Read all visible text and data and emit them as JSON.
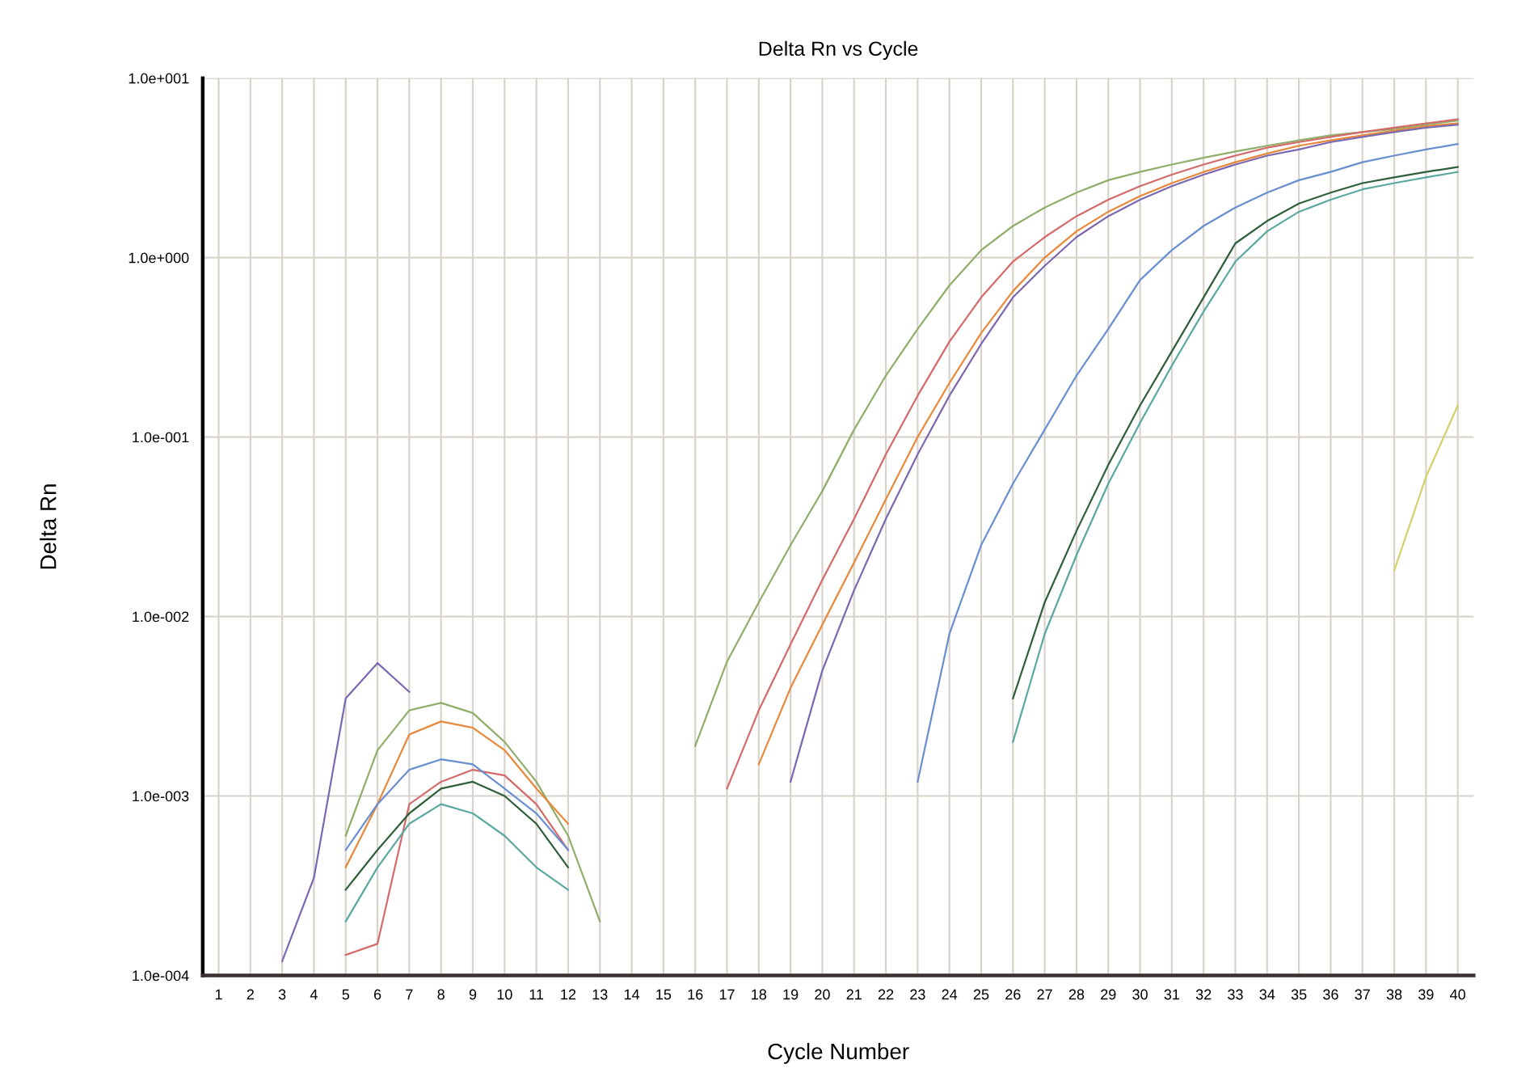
{
  "chart_data": {
    "type": "line",
    "title": "Delta Rn vs Cycle",
    "xlabel": "Cycle Number",
    "ylabel": "Delta Rn",
    "log": "y",
    "x": [
      3,
      4,
      5,
      6,
      7,
      8,
      9,
      10,
      11,
      12,
      13,
      14,
      15,
      16,
      17,
      18,
      19,
      20,
      21,
      22,
      23,
      24,
      25,
      26,
      27,
      28,
      29,
      30,
      31,
      32,
      33,
      34,
      35,
      36,
      37,
      38,
      39,
      40
    ],
    "series": [
      {
        "color": "#8fae6a",
        "values": [
          null,
          null,
          0.0006,
          0.0018,
          0.003,
          0.0033,
          0.0029,
          0.002,
          0.0012,
          0.0006,
          0.0002,
          null,
          null,
          0.0019,
          0.0056,
          0.012,
          0.025,
          0.05,
          0.11,
          0.22,
          0.4,
          0.7,
          1.1,
          1.5,
          1.9,
          2.3,
          2.7,
          3.0,
          3.3,
          3.6,
          3.9,
          4.2,
          4.5,
          4.8,
          5.0,
          5.2,
          5.5,
          5.8
        ]
      },
      {
        "color": "#e8883a",
        "values": [
          null,
          null,
          0.0004,
          0.0009,
          0.0022,
          0.0026,
          0.0024,
          0.0018,
          0.0011,
          0.0007,
          null,
          null,
          null,
          null,
          null,
          0.0015,
          0.004,
          0.009,
          0.02,
          0.045,
          0.1,
          0.2,
          0.38,
          0.65,
          1.0,
          1.4,
          1.8,
          2.2,
          2.6,
          3.0,
          3.4,
          3.8,
          4.2,
          4.5,
          4.8,
          5.1,
          5.4,
          5.6
        ]
      },
      {
        "color": "#7b68b0",
        "values": [
          0.00012,
          0.00035,
          0.0035,
          0.0055,
          0.0038,
          null,
          null,
          null,
          null,
          null,
          null,
          null,
          null,
          null,
          null,
          null,
          0.0012,
          0.005,
          0.014,
          0.035,
          0.08,
          0.17,
          0.33,
          0.6,
          0.9,
          1.3,
          1.7,
          2.1,
          2.5,
          2.9,
          3.3,
          3.7,
          4.0,
          4.4,
          4.7,
          5.0,
          5.3,
          5.5
        ]
      },
      {
        "color": "#d46a6a",
        "values": [
          null,
          null,
          0.00013,
          0.00015,
          0.0009,
          0.0012,
          0.0014,
          0.0013,
          0.0009,
          0.0005,
          null,
          null,
          null,
          null,
          0.0011,
          0.003,
          0.007,
          0.016,
          0.035,
          0.08,
          0.17,
          0.34,
          0.6,
          0.95,
          1.3,
          1.7,
          2.1,
          2.5,
          2.9,
          3.3,
          3.7,
          4.1,
          4.4,
          4.7,
          5.0,
          5.3,
          5.6,
          5.9
        ]
      },
      {
        "color": "#6a8fd0",
        "values": [
          null,
          null,
          0.0005,
          0.0009,
          0.0014,
          0.0016,
          0.0015,
          0.0011,
          0.0008,
          0.0005,
          null,
          null,
          null,
          null,
          null,
          null,
          null,
          null,
          null,
          null,
          0.0012,
          0.008,
          0.025,
          0.055,
          0.11,
          0.22,
          0.4,
          0.75,
          1.1,
          1.5,
          1.9,
          2.3,
          2.7,
          3.0,
          3.4,
          3.7,
          4.0,
          4.3
        ]
      },
      {
        "color": "#2f5f3a",
        "values": [
          null,
          null,
          0.0003,
          0.0005,
          0.0008,
          0.0011,
          0.0012,
          0.001,
          0.0007,
          0.0004,
          null,
          null,
          null,
          null,
          null,
          null,
          null,
          null,
          null,
          null,
          null,
          null,
          null,
          0.0035,
          0.012,
          0.03,
          0.07,
          0.15,
          0.3,
          0.6,
          1.2,
          1.6,
          2.0,
          2.3,
          2.6,
          2.8,
          3.0,
          3.2
        ]
      },
      {
        "color": "#5aa8a0",
        "values": [
          null,
          null,
          0.0002,
          0.0004,
          0.0007,
          0.0009,
          0.0008,
          0.0006,
          0.0004,
          0.0003,
          null,
          null,
          null,
          null,
          null,
          null,
          null,
          null,
          null,
          null,
          null,
          null,
          null,
          0.002,
          0.008,
          0.022,
          0.055,
          0.12,
          0.25,
          0.5,
          0.95,
          1.4,
          1.8,
          2.1,
          2.4,
          2.6,
          2.8,
          3.0
        ]
      },
      {
        "color": "#d8cf6a",
        "values": [
          null,
          null,
          null,
          null,
          null,
          null,
          null,
          null,
          null,
          null,
          null,
          null,
          null,
          null,
          null,
          null,
          null,
          null,
          null,
          null,
          null,
          null,
          null,
          null,
          null,
          null,
          null,
          null,
          null,
          null,
          null,
          null,
          null,
          null,
          null,
          0.018,
          0.06,
          0.15
        ]
      }
    ],
    "xlim": [
      0.5,
      40.5
    ],
    "xticks": [
      1,
      2,
      3,
      4,
      5,
      6,
      7,
      8,
      9,
      10,
      11,
      12,
      13,
      14,
      15,
      16,
      17,
      18,
      19,
      20,
      21,
      22,
      23,
      24,
      25,
      26,
      27,
      28,
      29,
      30,
      31,
      32,
      33,
      34,
      35,
      36,
      37,
      38,
      39,
      40
    ],
    "ylim": [
      0.0001,
      10
    ],
    "yticks": [
      {
        "value": 0.0001,
        "label": "1.0e-004"
      },
      {
        "value": 0.001,
        "label": "1.0e-003"
      },
      {
        "value": 0.01,
        "label": "1.0e-002"
      },
      {
        "value": 0.1,
        "label": "1.0e-001"
      },
      {
        "value": 1,
        "label": "1.0e+000"
      },
      {
        "value": 10,
        "label": "1.0e+001"
      }
    ],
    "grid": true,
    "marker": "none",
    "line_style": "solid"
  }
}
